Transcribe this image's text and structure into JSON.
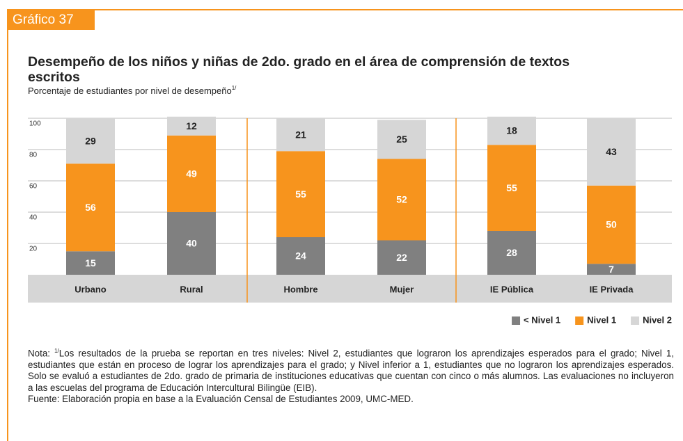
{
  "header": {
    "label": "Gráfico 37"
  },
  "chart_data": {
    "type": "stacked_bar",
    "title": "Desempeño de los niños y niñas de 2do. grado en el área de comprensión de textos escritos",
    "subtitle": "Porcentaje de estudiantes por nivel de desempeño",
    "subtitle_footnote": "1/",
    "categories": [
      "Urbano",
      "Rural",
      "Hombre",
      "Mujer",
      "IE Pública",
      "IE Privada"
    ],
    "series": [
      {
        "name": "< Nivel 1",
        "color": "#808080",
        "values": [
          15,
          40,
          24,
          22,
          28,
          7
        ]
      },
      {
        "name": "Nivel 1",
        "color": "#f7941d",
        "values": [
          56,
          49,
          55,
          52,
          55,
          50
        ]
      },
      {
        "name": "Nivel 2",
        "color": "#d6d6d6",
        "values": [
          29,
          12,
          21,
          25,
          18,
          43
        ]
      }
    ],
    "ylim": [
      0,
      100
    ],
    "yticks": [
      20,
      40,
      60,
      80,
      100
    ],
    "grid": true
  },
  "note": {
    "label": "Nota:",
    "footnote": "1/",
    "text": "Los resultados de la prueba se reportan en tres niveles: Nivel 2, estudiantes que lograron los aprendizajes esperados para el grado; Nivel 1, estudiantes que están en proceso de lograr los aprendizajes para el grado; y Nivel inferior a 1, estudiantes que no lograron los aprendizajes esperados. Solo se evaluó a estudiantes de 2do. grado de primaria de instituciones educativas que cuentan con cinco o más alumnos. Las evaluaciones no incluyeron a las escuelas del programa de Educación Intercultural Bilingüe (EIB).",
    "source": "Fuente: Elaboración propia en base a la Evaluación Censal de Estudiantes 2009, UMC-MED."
  }
}
